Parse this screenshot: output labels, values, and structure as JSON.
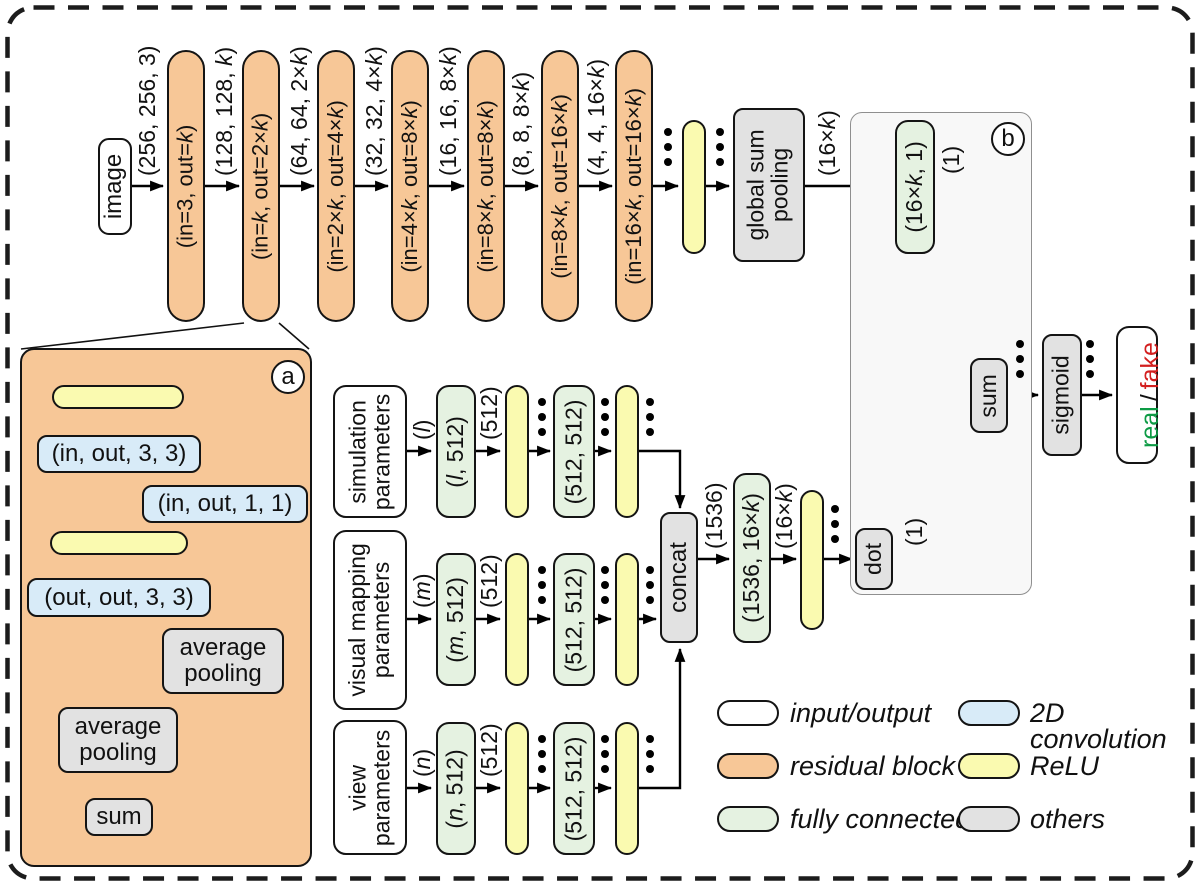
{
  "colors": {
    "residual": "#F7C797",
    "relu": "#FAFAB0",
    "fully_connected": "#E5F2E1",
    "conv2d": "#D8EBF8",
    "others": "#E2E2E2",
    "input_output": "#FFFFFF",
    "real_text": "#0D9B45",
    "fake_text": "#D31F1F"
  },
  "top_row": {
    "input_label": "image",
    "blocks": [
      {
        "label": "(in=3, out=k)",
        "dim": "(256, 256, 3)"
      },
      {
        "label": "(in=k, out=2×k)",
        "dim": "(128, 128, k)"
      },
      {
        "label": "(in=2×k, out=4×k)",
        "dim": "(64, 64, 2×k)"
      },
      {
        "label": "(in=4×k, out=8×k)",
        "dim": "(32, 32, 4×k)"
      },
      {
        "label": "(in=8×k, out=8×k)",
        "dim": "(16, 16, 8×k)"
      },
      {
        "label": "(in=8×k, out=16×k)",
        "dim": "(8, 8, 8×k)"
      },
      {
        "label": "(in=16×k, out=16×k)",
        "dim": "(4, 4, 16×k)"
      }
    ],
    "pooling_label": "global sum\npooling",
    "pooling_out": "(16×k)"
  },
  "box_b": {
    "tag": "b",
    "fc_label": "(16×k, 1)",
    "fc_out": "(1)",
    "dot_label": "dot",
    "dot_out": "(1)",
    "sum_label": "sum",
    "sigmoid_label": "sigmoid"
  },
  "output": {
    "real": "real",
    "separator": "/",
    "fake": "fake"
  },
  "box_a": {
    "tag": "a",
    "conv1": "(in, out, 3, 3)",
    "skip_conv": "(in, out, 1, 1)",
    "conv2": "(out, out, 3, 3)",
    "avg_pool_main": "average\npooling",
    "avg_pool_skip": "average\npooling",
    "sum_label": "sum"
  },
  "branches": [
    {
      "name": "simulation\nparameters",
      "in_dim": "(l)",
      "fc1": "(l, 512)",
      "mid_dim": "(512)",
      "fc2": "(512, 512)"
    },
    {
      "name": "visual mapping\nparameters",
      "in_dim": "(m)",
      "fc1": "(m, 512)",
      "mid_dim": "(512)",
      "fc2": "(512, 512)"
    },
    {
      "name": "view\nparameters",
      "in_dim": "(n)",
      "fc1": "(n, 512)",
      "mid_dim": "(512)",
      "fc2": "(512, 512)"
    }
  ],
  "fusion": {
    "concat_label": "concat",
    "concat_out": "(1536)",
    "fc_label": "(1536, 16×k)",
    "fc_out": "(16×k)"
  },
  "legend": {
    "items": [
      {
        "label": "input/output",
        "type": "input_output"
      },
      {
        "label": "residual block",
        "type": "residual"
      },
      {
        "label": "fully connected",
        "type": "fully_connected"
      },
      {
        "label": "2D convolution",
        "type": "conv2d"
      },
      {
        "label": "ReLU",
        "type": "relu"
      },
      {
        "label": "others",
        "type": "others"
      }
    ]
  }
}
